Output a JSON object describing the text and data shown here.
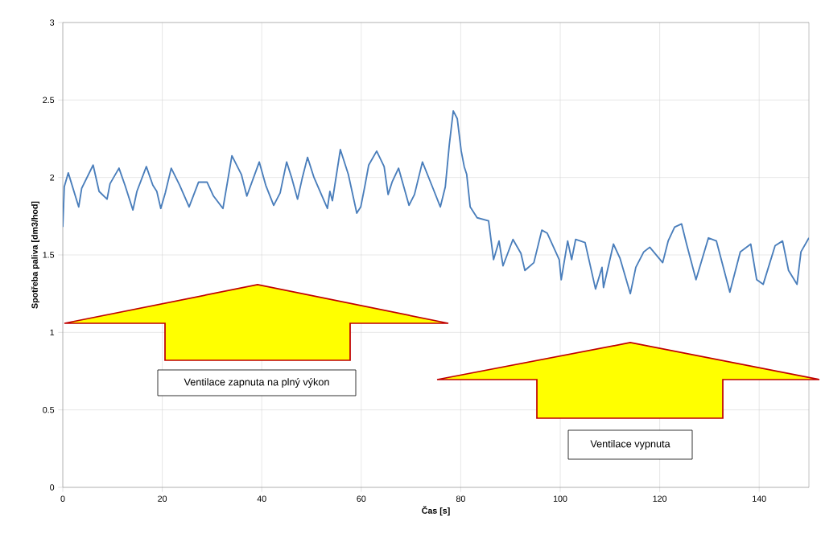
{
  "chart_data": {
    "type": "line",
    "xlabel": "Čas [s]",
    "ylabel": "Spotřeba paliva [dm3/hod]",
    "xlim": [
      0,
      150
    ],
    "xticks": [
      0,
      20,
      40,
      60,
      80,
      100,
      120,
      140
    ],
    "ylim": [
      0,
      3
    ],
    "yticks": [
      0,
      0.5,
      1,
      1.5,
      2,
      2.5,
      3
    ],
    "grid": true,
    "marker": "none",
    "line_style": "solid",
    "annotations": [
      "Ventilace zapnuta na plný výkon",
      "Ventilace vypnuta"
    ],
    "series": [
      {
        "color": "#4a7ebb",
        "x": [
          0,
          0.3,
          1.1,
          3.2,
          3.8,
          6.1,
          7.3,
          8.9,
          9.5,
          11.3,
          12.5,
          14.1,
          14.9,
          16.8,
          18.1,
          18.9,
          19.7,
          20.6,
          21.8,
          23.5,
          25.4,
          27.3,
          29,
          30.3,
          32.2,
          34,
          35.9,
          37,
          39.5,
          40.8,
          42.4,
          43.7,
          45,
          46,
          47.2,
          48.1,
          49.2,
          50.5,
          53.2,
          53.7,
          54.2,
          55.8,
          57.4,
          59.1,
          59.9,
          60.7,
          61.5,
          63.1,
          64.6,
          65.4,
          66.2,
          67.5,
          69.6,
          70.7,
          72.3,
          74.3,
          75.9,
          76.9,
          77.7,
          78.5,
          79.3,
          80.1,
          80.7,
          81.2,
          81.9,
          83.3,
          85.6,
          86.6,
          87.7,
          88.5,
          90.5,
          92.1,
          92.9,
          94.7,
          96.3,
          97.4,
          99.8,
          100.2,
          101.5,
          102.3,
          103.1,
          105,
          107.1,
          108.4,
          108.7,
          110.7,
          112,
          114.1,
          115.2,
          116.8,
          118,
          120.6,
          121.7,
          123,
          124.4,
          125.4,
          127.3,
          128.5,
          129.8,
          131.4,
          134.1,
          136.2,
          138.3,
          139.5,
          140.8,
          143.2,
          144.7,
          145.9,
          147.6,
          148.4,
          150
        ],
        "values": [
          1.68,
          1.94,
          2.03,
          1.81,
          1.93,
          2.08,
          1.91,
          1.86,
          1.96,
          2.06,
          1.95,
          1.79,
          1.91,
          2.07,
          1.95,
          1.91,
          1.8,
          1.9,
          2.06,
          1.95,
          1.81,
          1.97,
          1.97,
          1.88,
          1.8,
          2.14,
          2.02,
          1.88,
          2.1,
          1.95,
          1.82,
          1.9,
          2.1,
          2.0,
          1.86,
          1.99,
          2.13,
          2.0,
          1.8,
          1.91,
          1.85,
          2.18,
          2.02,
          1.77,
          1.81,
          1.94,
          2.08,
          2.17,
          2.07,
          1.89,
          1.97,
          2.06,
          1.82,
          1.89,
          2.1,
          1.94,
          1.81,
          1.94,
          2.21,
          2.43,
          2.38,
          2.17,
          2.07,
          2.02,
          1.81,
          1.74,
          1.72,
          1.47,
          1.59,
          1.43,
          1.6,
          1.51,
          1.4,
          1.45,
          1.66,
          1.64,
          1.47,
          1.34,
          1.59,
          1.47,
          1.6,
          1.58,
          1.28,
          1.42,
          1.29,
          1.57,
          1.48,
          1.25,
          1.42,
          1.52,
          1.55,
          1.45,
          1.59,
          1.68,
          1.7,
          1.57,
          1.34,
          1.47,
          1.61,
          1.59,
          1.26,
          1.52,
          1.57,
          1.34,
          1.31,
          1.56,
          1.59,
          1.4,
          1.31,
          1.52,
          1.61
        ]
      }
    ]
  }
}
